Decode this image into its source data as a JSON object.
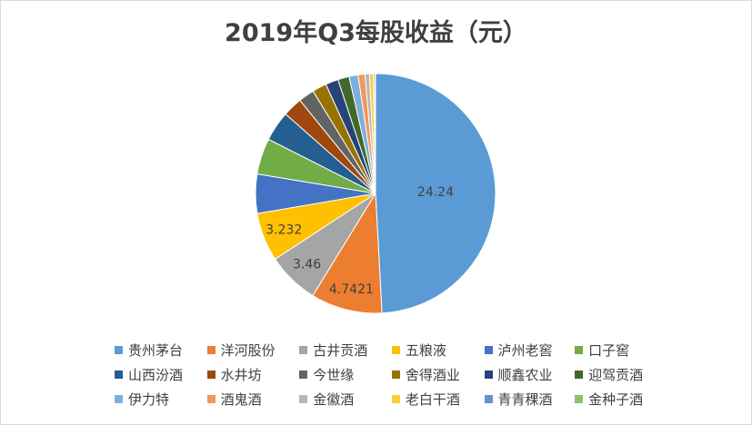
{
  "chart_data": {
    "type": "pie",
    "title": "2019年Q3每股收益（元）",
    "legend_position": "bottom",
    "slices": [
      {
        "name": "贵州茅台",
        "value": 24.24,
        "color": "#5b9bd5",
        "label": "24.24"
      },
      {
        "name": "洋河股份",
        "value": 4.7421,
        "color": "#ed7d31",
        "label": "4.7421"
      },
      {
        "name": "古井贡酒",
        "value": 3.46,
        "color": "#a5a5a5",
        "label": "3.46"
      },
      {
        "name": "五粮液",
        "value": 3.232,
        "color": "#ffc000",
        "label": "3.232"
      },
      {
        "name": "泸州老窖",
        "value": 2.6,
        "color": "#4472c4"
      },
      {
        "name": "口子窖",
        "value": 2.4,
        "color": "#70ad47"
      },
      {
        "name": "山西汾酒",
        "value": 2.0,
        "color": "#255e91"
      },
      {
        "name": "水井坊",
        "value": 1.3,
        "color": "#9e480e"
      },
      {
        "name": "今世缘",
        "value": 1.05,
        "color": "#636363"
      },
      {
        "name": "舍得酒业",
        "value": 0.95,
        "color": "#997300"
      },
      {
        "name": "顺鑫农业",
        "value": 0.85,
        "color": "#264478"
      },
      {
        "name": "迎驾贡酒",
        "value": 0.75,
        "color": "#43682b"
      },
      {
        "name": "伊力特",
        "value": 0.6,
        "color": "#7cafdd"
      },
      {
        "name": "酒鬼酒",
        "value": 0.45,
        "color": "#f1975a"
      },
      {
        "name": "金徽酒",
        "value": 0.3,
        "color": "#b7b7b7"
      },
      {
        "name": "老白干酒",
        "value": 0.25,
        "color": "#ffcd33"
      },
      {
        "name": "青青稞酒",
        "value": 0.1,
        "color": "#698ed0"
      },
      {
        "name": "金种子酒",
        "value": 0.05,
        "color": "#8cc168"
      }
    ]
  }
}
